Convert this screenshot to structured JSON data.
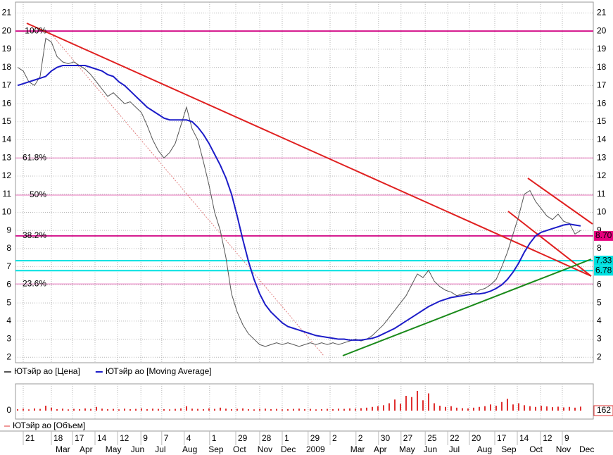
{
  "chart_data": {
    "type": "line",
    "series": [
      {
        "name": "ЮТэйр ао [Цена]",
        "color": "#555555",
        "values": [
          18.0,
          17.8,
          17.2,
          17.0,
          17.5,
          19.6,
          19.4,
          18.6,
          18.3,
          18.2,
          18.3,
          18.1,
          17.9,
          17.6,
          17.2,
          16.8,
          16.4,
          16.6,
          16.3,
          16.0,
          16.1,
          15.8,
          15.5,
          14.8,
          14.0,
          13.4,
          13.0,
          13.3,
          13.8,
          14.8,
          15.8,
          14.6,
          14.0,
          12.8,
          11.5,
          10.0,
          9.0,
          7.5,
          5.5,
          4.5,
          3.8,
          3.3,
          3.0,
          2.7,
          2.6,
          2.7,
          2.8,
          2.7,
          2.8,
          2.7,
          2.6,
          2.7,
          2.8,
          2.7,
          2.8,
          2.7,
          2.8,
          2.7,
          2.8,
          2.9,
          3.0,
          2.9,
          3.0,
          3.2,
          3.5,
          3.8,
          4.2,
          4.6,
          5.0,
          5.4,
          6.0,
          6.6,
          6.4,
          6.8,
          6.2,
          5.9,
          5.7,
          5.6,
          5.4,
          5.5,
          5.6,
          5.5,
          5.7,
          5.8,
          6.0,
          6.3,
          7.0,
          7.8,
          8.8,
          9.8,
          11.0,
          11.2,
          10.6,
          10.2,
          9.8,
          9.6,
          9.9,
          9.5,
          9.4,
          8.8,
          9.0
        ]
      },
      {
        "name": "ЮТэйр ао [Moving Average]",
        "color": "#1c1cc8",
        "values": [
          17.0,
          17.1,
          17.2,
          17.3,
          17.4,
          17.5,
          17.8,
          18.0,
          18.1,
          18.1,
          18.1,
          18.1,
          18.1,
          18.0,
          17.9,
          17.8,
          17.6,
          17.5,
          17.2,
          17.0,
          16.7,
          16.4,
          16.1,
          15.8,
          15.6,
          15.4,
          15.2,
          15.1,
          15.1,
          15.1,
          15.1,
          15.0,
          14.7,
          14.3,
          13.8,
          13.2,
          12.6,
          11.9,
          11.0,
          9.8,
          8.5,
          7.3,
          6.3,
          5.5,
          4.9,
          4.5,
          4.2,
          3.9,
          3.7,
          3.6,
          3.5,
          3.4,
          3.3,
          3.2,
          3.15,
          3.1,
          3.05,
          3.0,
          3.0,
          2.95,
          2.95,
          2.95,
          3.0,
          3.05,
          3.15,
          3.3,
          3.45,
          3.6,
          3.8,
          4.0,
          4.2,
          4.4,
          4.6,
          4.8,
          4.95,
          5.1,
          5.2,
          5.3,
          5.35,
          5.4,
          5.45,
          5.5,
          5.5,
          5.55,
          5.65,
          5.8,
          6.0,
          6.3,
          6.7,
          7.2,
          7.8,
          8.3,
          8.7,
          8.9,
          9.0,
          9.1,
          9.2,
          9.3,
          9.35,
          9.3,
          9.25
        ]
      }
    ],
    "xlim": [
      -0.375,
      102.25
    ],
    "ylim": [
      1.7,
      21.6
    ],
    "yticks": [
      2,
      3,
      4,
      5,
      6,
      7,
      8,
      9,
      10,
      11,
      12,
      13,
      14,
      15,
      16,
      17,
      18,
      19,
      20,
      21
    ],
    "grid": true,
    "xticks": [
      {
        "value": 1,
        "label": "21"
      },
      {
        "value": 6,
        "label": "18"
      },
      {
        "value": 9.75,
        "label": "17"
      },
      {
        "value": 13.75,
        "label": "14"
      },
      {
        "value": 17.75,
        "label": "12"
      },
      {
        "value": 21.9,
        "label": "9"
      },
      {
        "value": 25.6,
        "label": "7"
      },
      {
        "value": 29.6,
        "label": "4"
      },
      {
        "value": 34.1,
        "label": "1"
      },
      {
        "value": 38.75,
        "label": "29"
      },
      {
        "value": 43,
        "label": "28"
      },
      {
        "value": 47,
        "label": "1"
      },
      {
        "value": 51.6,
        "label": "29"
      },
      {
        "value": 55.5,
        "label": "2"
      },
      {
        "value": 60.1,
        "label": "2"
      },
      {
        "value": 64.1,
        "label": "30"
      },
      {
        "value": 68.1,
        "label": "27"
      },
      {
        "value": 72.4,
        "label": "25"
      },
      {
        "value": 76.4,
        "label": "22"
      },
      {
        "value": 80.25,
        "label": "20"
      },
      {
        "value": 84.75,
        "label": "17"
      },
      {
        "value": 88.75,
        "label": "14"
      },
      {
        "value": 92.9,
        "label": "12"
      },
      {
        "value": 96.75,
        "label": "9"
      }
    ],
    "month_labels": [
      {
        "value": 6.75,
        "label": "Mar"
      },
      {
        "value": 11,
        "label": "Apr"
      },
      {
        "value": 15.6,
        "label": "May"
      },
      {
        "value": 20.1,
        "label": "Jun"
      },
      {
        "value": 24.4,
        "label": "Jul"
      },
      {
        "value": 29.25,
        "label": "Aug"
      },
      {
        "value": 33.9,
        "label": "Sep"
      },
      {
        "value": 38.25,
        "label": "Oct"
      },
      {
        "value": 42.6,
        "label": "Nov"
      },
      {
        "value": 46.75,
        "label": "Dec"
      },
      {
        "value": 51.25,
        "label": "2009"
      },
      {
        "value": 59.1,
        "label": "Mar"
      },
      {
        "value": 63.25,
        "label": "Apr"
      },
      {
        "value": 67.75,
        "label": "May"
      },
      {
        "value": 72.1,
        "label": "Jun"
      },
      {
        "value": 76.6,
        "label": "Jul"
      },
      {
        "value": 81.6,
        "label": "Aug"
      },
      {
        "value": 85.9,
        "label": "Sep"
      },
      {
        "value": 90.9,
        "label": "Oct"
      },
      {
        "value": 95.6,
        "label": "Nov"
      },
      {
        "value": 99.75,
        "label": "Dec"
      }
    ],
    "levels": [
      {
        "value": 20,
        "label": "100%",
        "color": "#d4148c"
      },
      {
        "value": 13,
        "label": "61.8%",
        "color": "#d4148c"
      },
      {
        "value": 10.95,
        "label": "50%",
        "color": "#d4148c"
      },
      {
        "value": 8.7,
        "label": "38.2%",
        "color": "#d4148c"
      },
      {
        "value": 6.05,
        "label": "23.6%",
        "color": "#d4148c"
      }
    ],
    "price_markers": [
      {
        "value": 8.7,
        "label": "8.70",
        "color": "#e6007e"
      },
      {
        "value": 7.33,
        "color": "#00e0e0"
      },
      {
        "value": 6.78,
        "color": "#00e0e0"
      }
    ],
    "volume": {
      "name": "ЮТэйр ао [Объем]",
      "color": "#e03030",
      "ylim": [
        0,
        1000
      ],
      "yticks": [
        0
      ],
      "values": [
        60,
        80,
        50,
        90,
        70,
        200,
        120,
        60,
        80,
        50,
        70,
        60,
        90,
        70,
        150,
        80,
        60,
        70,
        50,
        80,
        60,
        70,
        90,
        60,
        80,
        70,
        60,
        50,
        70,
        90,
        180,
        80,
        70,
        60,
        90,
        70,
        120,
        80,
        60,
        70,
        90,
        60,
        50,
        70,
        80,
        60,
        70,
        50,
        60,
        70,
        80,
        60,
        70,
        50,
        60,
        70,
        60,
        80,
        70,
        90,
        80,
        100,
        120,
        150,
        180,
        220,
        300,
        450,
        280,
        600,
        550,
        800,
        420,
        700,
        300,
        200,
        150,
        180,
        120,
        100,
        90,
        120,
        150,
        180,
        250,
        200,
        350,
        480,
        250,
        300,
        220,
        180,
        150,
        200,
        170,
        140,
        160,
        130,
        150,
        120,
        162
      ]
    }
  }
}
